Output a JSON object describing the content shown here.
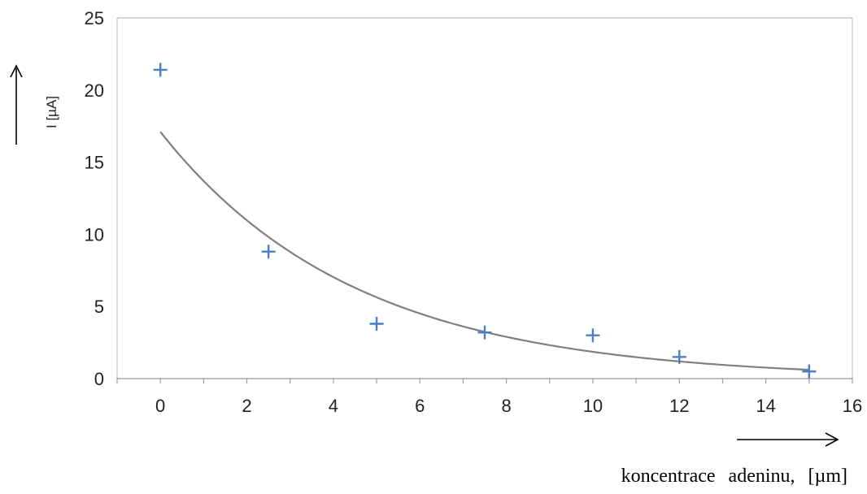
{
  "chart_data": {
    "type": "scatter",
    "x_axis": {
      "label": "koncentrace  adeninu,  [µm]",
      "ticks": [
        "0",
        "2",
        "4",
        "6",
        "8",
        "10",
        "12",
        "14",
        "16"
      ],
      "lim": [
        -1,
        16
      ]
    },
    "y_axis": {
      "label": "I [µA]",
      "ticks": [
        "0",
        "5",
        "10",
        "15",
        "20",
        "25"
      ],
      "lim": [
        0,
        25
      ]
    },
    "grid": false,
    "series": [
      {
        "kind": "markers",
        "marker": "plus",
        "color": "#4a7ec9",
        "points": [
          {
            "x": 0,
            "y": 21.4
          },
          {
            "x": 2.5,
            "y": 8.8
          },
          {
            "x": 5,
            "y": 3.8
          },
          {
            "x": 7.5,
            "y": 3.2
          },
          {
            "x": 10,
            "y": 3.0
          },
          {
            "x": 12,
            "y": 1.5
          },
          {
            "x": 15,
            "y": 0.5
          }
        ]
      },
      {
        "kind": "trendline",
        "model": "exponential",
        "color": "#808080",
        "a": 17.1,
        "b": -0.222,
        "x_range": [
          0,
          15
        ]
      }
    ]
  }
}
